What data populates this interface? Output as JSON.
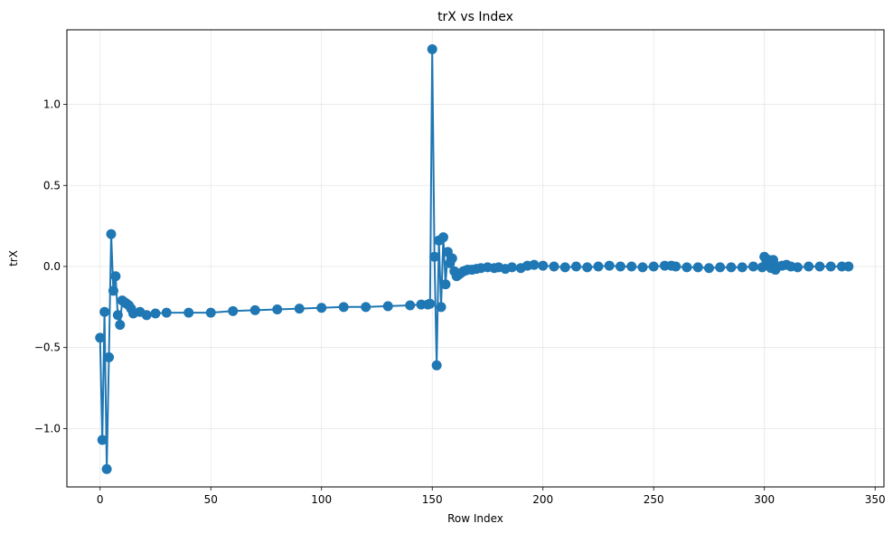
{
  "chart_data": {
    "type": "line",
    "title": "trX vs Index",
    "xlabel": "Row Index",
    "ylabel": "trX",
    "xlim": [
      -15,
      354
    ],
    "ylim": [
      -1.36,
      1.46
    ],
    "xticks": [
      0,
      50,
      100,
      150,
      200,
      250,
      300,
      350
    ],
    "xtick_labels": [
      "0",
      "50",
      "100",
      "150",
      "200",
      "250",
      "300",
      "350"
    ],
    "yticks": [
      -1.0,
      -0.5,
      0.0,
      0.5,
      1.0
    ],
    "ytick_labels": [
      "−1.0",
      "−0.5",
      "0.0",
      "0.5",
      "1.0"
    ],
    "grid": true,
    "marker": "circle",
    "line_color": "#1f77b4",
    "series": [
      {
        "name": "",
        "x": [
          0,
          1,
          2,
          3,
          4,
          5,
          6,
          7,
          8,
          9,
          10,
          11,
          12,
          13,
          14,
          15,
          18,
          21,
          25,
          30,
          40,
          50,
          60,
          70,
          80,
          90,
          100,
          110,
          120,
          130,
          140,
          145,
          148,
          149,
          150,
          151,
          152,
          153,
          154,
          155,
          156,
          157,
          158,
          159,
          160,
          161,
          162,
          163,
          164,
          165,
          166,
          168,
          170,
          172,
          175,
          178,
          180,
          183,
          186,
          190,
          193,
          196,
          200,
          205,
          210,
          215,
          220,
          225,
          230,
          235,
          240,
          245,
          250,
          255,
          258,
          260,
          265,
          270,
          275,
          280,
          285,
          290,
          295,
          299,
          300,
          301,
          302,
          303,
          304,
          305,
          306,
          308,
          310,
          312,
          315,
          320,
          325,
          330,
          335,
          338
        ],
        "y": [
          -0.44,
          -1.07,
          -0.28,
          -1.25,
          -0.56,
          0.2,
          -0.15,
          -0.06,
          -0.3,
          -0.36,
          -0.21,
          -0.22,
          -0.23,
          -0.24,
          -0.26,
          -0.29,
          -0.28,
          -0.3,
          -0.29,
          -0.285,
          -0.285,
          -0.285,
          -0.275,
          -0.27,
          -0.265,
          -0.26,
          -0.255,
          -0.25,
          -0.25,
          -0.245,
          -0.24,
          -0.235,
          -0.235,
          -0.23,
          1.34,
          0.06,
          -0.61,
          0.16,
          -0.25,
          0.18,
          -0.11,
          0.09,
          0.02,
          0.05,
          -0.03,
          -0.06,
          -0.05,
          -0.04,
          -0.03,
          -0.025,
          -0.02,
          -0.02,
          -0.015,
          -0.01,
          -0.005,
          -0.01,
          -0.005,
          -0.015,
          -0.005,
          -0.01,
          0.005,
          0.01,
          0.005,
          0.0,
          -0.005,
          0.0,
          -0.005,
          0.0,
          0.005,
          0.0,
          0.0,
          -0.005,
          0.0,
          0.005,
          0.005,
          0.0,
          -0.005,
          -0.005,
          -0.01,
          -0.005,
          -0.005,
          -0.005,
          0.0,
          -0.005,
          0.06,
          0.03,
          0.04,
          -0.01,
          0.04,
          -0.02,
          0.0,
          0.005,
          0.01,
          0.0,
          -0.005,
          0.0,
          0.0,
          0.0,
          0.0,
          0.0
        ]
      }
    ]
  }
}
